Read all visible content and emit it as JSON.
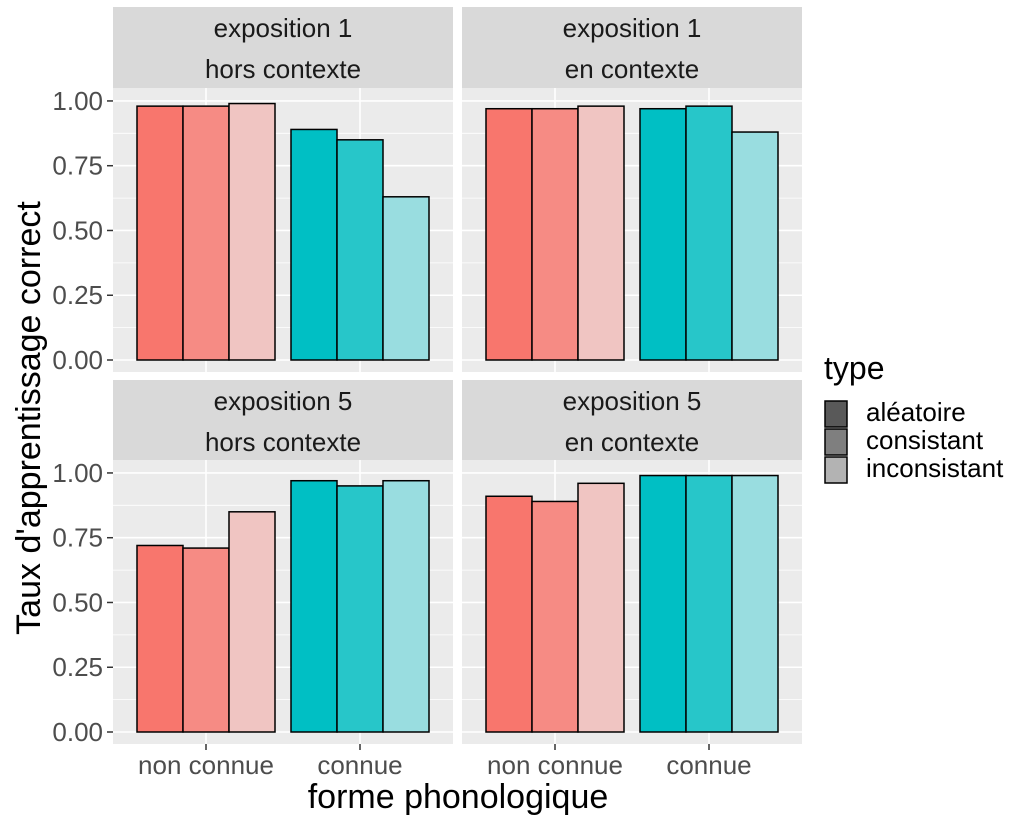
{
  "chart_data": {
    "type": "bar",
    "xlabel": "forme phonologique",
    "ylabel": "Taux d'apprentissage correct",
    "categories": [
      "non connue",
      "connue"
    ],
    "ylim": [
      0,
      1.05
    ],
    "yticks": [
      "0.00",
      "0.25",
      "0.50",
      "0.75",
      "1.00"
    ],
    "legend": {
      "title": "type",
      "position": "right",
      "items": [
        "aléatoire",
        "consistant",
        "inconsistant"
      ]
    },
    "colors": {
      "non connue": [
        "#F8766D",
        "#F68B84",
        "#F0C5C2"
      ],
      "connue": [
        "#00BFC4",
        "#27C6C9",
        "#99DDE0"
      ],
      "legend": [
        "#595959",
        "#7F7F7F",
        "#B3B3B3"
      ],
      "panel_bg": "#EBEBEB",
      "strip_bg": "#D9D9D9",
      "grid": "#FFFFFF"
    },
    "panels": [
      {
        "strip": [
          "exposition 1",
          "hors contexte"
        ],
        "series": [
          {
            "name": "aléatoire",
            "values": [
              0.98,
              0.89
            ]
          },
          {
            "name": "consistant",
            "values": [
              0.98,
              0.85
            ]
          },
          {
            "name": "inconsistant",
            "values": [
              0.99,
              0.63
            ]
          }
        ]
      },
      {
        "strip": [
          "exposition 1",
          "en contexte"
        ],
        "series": [
          {
            "name": "aléatoire",
            "values": [
              0.97,
              0.97
            ]
          },
          {
            "name": "consistant",
            "values": [
              0.97,
              0.98
            ]
          },
          {
            "name": "inconsistant",
            "values": [
              0.98,
              0.88
            ]
          }
        ]
      },
      {
        "strip": [
          "exposition 5",
          "hors contexte"
        ],
        "series": [
          {
            "name": "aléatoire",
            "values": [
              0.72,
              0.97
            ]
          },
          {
            "name": "consistant",
            "values": [
              0.71,
              0.95
            ]
          },
          {
            "name": "inconsistant",
            "values": [
              0.85,
              0.97
            ]
          }
        ]
      },
      {
        "strip": [
          "exposition 5",
          "en contexte"
        ],
        "series": [
          {
            "name": "aléatoire",
            "values": [
              0.91,
              0.99
            ]
          },
          {
            "name": "consistant",
            "values": [
              0.89,
              0.99
            ]
          },
          {
            "name": "inconsistant",
            "values": [
              0.96,
              0.99
            ]
          }
        ]
      }
    ]
  }
}
